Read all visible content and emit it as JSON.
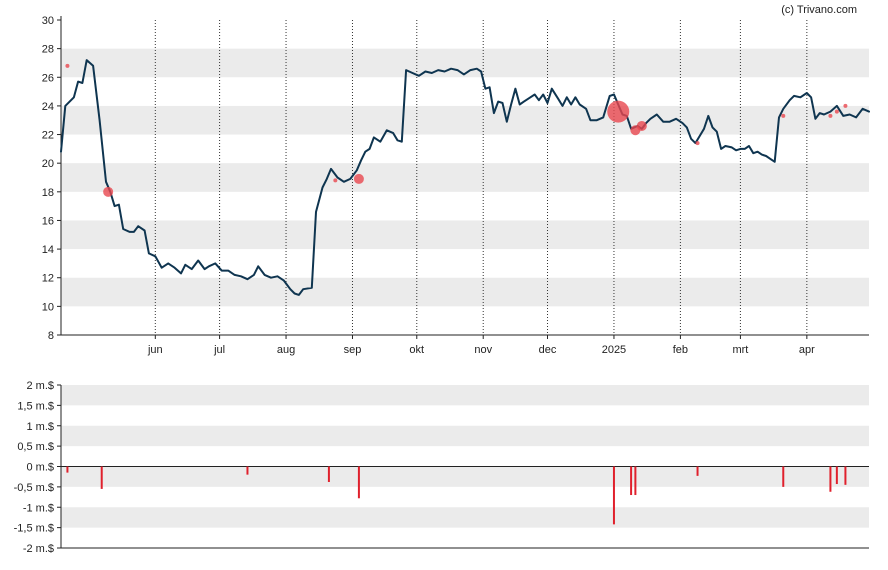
{
  "credit": "(c) Trivano.com",
  "colors": {
    "line": "#0f3550",
    "bubble": "#e8474f",
    "bar": "#e0202c",
    "band": "#ebebeb",
    "axis": "#222222",
    "grid_dotted": "#333333"
  },
  "chart_data": [
    {
      "type": "line",
      "title": "",
      "grid": true,
      "ylim": [
        8,
        30
      ],
      "yticks": [
        "8",
        "10",
        "12",
        "14",
        "16",
        "18",
        "20",
        "22",
        "24",
        "26",
        "28",
        "30"
      ],
      "ytick_values": [
        8,
        10,
        12,
        14,
        16,
        18,
        20,
        22,
        24,
        26,
        28,
        30
      ],
      "xticks": [
        "jun",
        "jul",
        "aug",
        "sep",
        "okt",
        "nov",
        "dec",
        "2025",
        "feb",
        "mrt",
        "apr"
      ],
      "xtick_dates": [
        "2024-06-01",
        "2024-07-01",
        "2024-08-01",
        "2024-09-01",
        "2024-10-01",
        "2024-11-01",
        "2024-12-01",
        "2025-01-01",
        "2025-02-01",
        "2025-03-01",
        "2025-04-01"
      ],
      "xlim": [
        "2024-04-18",
        "2025-04-30"
      ],
      "series": [
        {
          "values": [
            [
              "2024-04-18",
              20.8
            ],
            [
              "2024-04-20",
              24.0
            ],
            [
              "2024-04-24",
              24.6
            ],
            [
              "2024-04-26",
              25.7
            ],
            [
              "2024-04-28",
              25.6
            ],
            [
              "2024-04-30",
              27.2
            ],
            [
              "2024-05-03",
              26.8
            ],
            [
              "2024-05-06",
              23.0
            ],
            [
              "2024-05-09",
              18.7
            ],
            [
              "2024-05-11",
              18.0
            ],
            [
              "2024-05-13",
              17.0
            ],
            [
              "2024-05-15",
              17.1
            ],
            [
              "2024-05-17",
              15.4
            ],
            [
              "2024-05-20",
              15.2
            ],
            [
              "2024-05-22",
              15.2
            ],
            [
              "2024-05-24",
              15.6
            ],
            [
              "2024-05-27",
              15.3
            ],
            [
              "2024-05-29",
              13.7
            ],
            [
              "2024-06-01",
              13.5
            ],
            [
              "2024-06-04",
              12.7
            ],
            [
              "2024-06-07",
              13.0
            ],
            [
              "2024-06-10",
              12.7
            ],
            [
              "2024-06-13",
              12.3
            ],
            [
              "2024-06-15",
              12.9
            ],
            [
              "2024-06-18",
              12.6
            ],
            [
              "2024-06-21",
              13.2
            ],
            [
              "2024-06-24",
              12.6
            ],
            [
              "2024-06-26",
              12.8
            ],
            [
              "2024-06-29",
              13.0
            ],
            [
              "2024-07-02",
              12.5
            ],
            [
              "2024-07-05",
              12.5
            ],
            [
              "2024-07-08",
              12.2
            ],
            [
              "2024-07-11",
              12.1
            ],
            [
              "2024-07-14",
              11.9
            ],
            [
              "2024-07-17",
              12.2
            ],
            [
              "2024-07-19",
              12.8
            ],
            [
              "2024-07-22",
              12.2
            ],
            [
              "2024-07-25",
              12.0
            ],
            [
              "2024-07-28",
              12.1
            ],
            [
              "2024-07-31",
              11.8
            ],
            [
              "2024-08-03",
              11.2
            ],
            [
              "2024-08-05",
              10.9
            ],
            [
              "2024-08-07",
              10.8
            ],
            [
              "2024-08-09",
              11.2
            ],
            [
              "2024-08-13",
              11.3
            ],
            [
              "2024-08-15",
              16.6
            ],
            [
              "2024-08-18",
              18.3
            ],
            [
              "2024-08-20",
              18.9
            ],
            [
              "2024-08-22",
              19.6
            ],
            [
              "2024-08-25",
              19.0
            ],
            [
              "2024-08-28",
              18.7
            ],
            [
              "2024-08-31",
              18.9
            ],
            [
              "2024-09-03",
              19.5
            ],
            [
              "2024-09-05",
              20.2
            ],
            [
              "2024-09-07",
              20.8
            ],
            [
              "2024-09-09",
              21.0
            ],
            [
              "2024-09-11",
              21.8
            ],
            [
              "2024-09-14",
              21.5
            ],
            [
              "2024-09-17",
              22.3
            ],
            [
              "2024-09-20",
              22.1
            ],
            [
              "2024-09-22",
              21.6
            ],
            [
              "2024-09-24",
              21.5
            ],
            [
              "2024-09-26",
              26.5
            ],
            [
              "2024-09-29",
              26.3
            ],
            [
              "2024-10-02",
              26.1
            ],
            [
              "2024-10-05",
              26.4
            ],
            [
              "2024-10-08",
              26.3
            ],
            [
              "2024-10-11",
              26.5
            ],
            [
              "2024-10-14",
              26.4
            ],
            [
              "2024-10-17",
              26.6
            ],
            [
              "2024-10-20",
              26.5
            ],
            [
              "2024-10-23",
              26.2
            ],
            [
              "2024-10-26",
              26.5
            ],
            [
              "2024-10-29",
              26.6
            ],
            [
              "2024-10-31",
              26.4
            ],
            [
              "2024-11-02",
              25.2
            ],
            [
              "2024-11-04",
              25.3
            ],
            [
              "2024-11-06",
              23.5
            ],
            [
              "2024-11-08",
              24.3
            ],
            [
              "2024-11-10",
              24.2
            ],
            [
              "2024-11-12",
              22.9
            ],
            [
              "2024-11-14",
              24.1
            ],
            [
              "2024-11-16",
              25.2
            ],
            [
              "2024-11-18",
              24.1
            ],
            [
              "2024-11-20",
              24.3
            ],
            [
              "2024-11-23",
              24.6
            ],
            [
              "2024-11-25",
              24.8
            ],
            [
              "2024-11-27",
              24.4
            ],
            [
              "2024-11-29",
              24.8
            ],
            [
              "2024-12-01",
              24.2
            ],
            [
              "2024-12-03",
              25.2
            ],
            [
              "2024-12-06",
              24.5
            ],
            [
              "2024-12-08",
              24.0
            ],
            [
              "2024-12-10",
              24.6
            ],
            [
              "2024-12-12",
              24.1
            ],
            [
              "2024-12-14",
              24.6
            ],
            [
              "2024-12-16",
              24.1
            ],
            [
              "2024-12-19",
              23.8
            ],
            [
              "2024-12-21",
              23.0
            ],
            [
              "2024-12-24",
              23.0
            ],
            [
              "2024-12-27",
              23.2
            ],
            [
              "2024-12-30",
              24.7
            ],
            [
              "2025-01-01",
              24.8
            ],
            [
              "2025-01-03",
              24.1
            ],
            [
              "2025-01-05",
              23.4
            ],
            [
              "2025-01-07",
              23.3
            ],
            [
              "2025-01-09",
              22.4
            ],
            [
              "2025-01-12",
              22.6
            ],
            [
              "2025-01-14",
              22.4
            ],
            [
              "2025-01-16",
              22.8
            ],
            [
              "2025-01-18",
              23.1
            ],
            [
              "2025-01-21",
              23.4
            ],
            [
              "2025-01-24",
              22.9
            ],
            [
              "2025-01-27",
              22.9
            ],
            [
              "2025-01-30",
              23.1
            ],
            [
              "2025-02-02",
              22.8
            ],
            [
              "2025-02-04",
              22.5
            ],
            [
              "2025-02-06",
              21.7
            ],
            [
              "2025-02-08",
              21.4
            ],
            [
              "2025-02-10",
              21.9
            ],
            [
              "2025-02-12",
              22.4
            ],
            [
              "2025-02-14",
              23.3
            ],
            [
              "2025-02-16",
              22.5
            ],
            [
              "2025-02-18",
              22.2
            ],
            [
              "2025-02-20",
              21.0
            ],
            [
              "2025-02-22",
              21.2
            ],
            [
              "2025-02-25",
              21.1
            ],
            [
              "2025-02-27",
              20.9
            ],
            [
              "2025-03-01",
              21.0
            ],
            [
              "2025-03-03",
              21.0
            ],
            [
              "2025-03-05",
              21.2
            ],
            [
              "2025-03-07",
              20.7
            ],
            [
              "2025-03-09",
              20.8
            ],
            [
              "2025-03-11",
              20.6
            ],
            [
              "2025-03-13",
              20.5
            ],
            [
              "2025-03-15",
              20.3
            ],
            [
              "2025-03-17",
              20.1
            ],
            [
              "2025-03-19",
              23.2
            ],
            [
              "2025-03-21",
              23.8
            ],
            [
              "2025-03-24",
              24.4
            ],
            [
              "2025-03-26",
              24.7
            ],
            [
              "2025-03-29",
              24.6
            ],
            [
              "2025-04-01",
              24.9
            ],
            [
              "2025-04-03",
              24.6
            ],
            [
              "2025-04-05",
              23.1
            ],
            [
              "2025-04-07",
              23.5
            ],
            [
              "2025-04-09",
              23.4
            ],
            [
              "2025-04-12",
              23.6
            ],
            [
              "2025-04-15",
              24.0
            ],
            [
              "2025-04-18",
              23.3
            ],
            [
              "2025-04-21",
              23.4
            ],
            [
              "2025-04-24",
              23.2
            ],
            [
              "2025-04-27",
              23.8
            ],
            [
              "2025-04-30",
              23.6
            ]
          ]
        }
      ],
      "markers": [
        {
          "date": "2024-04-21",
          "value": 26.8,
          "size": 1
        },
        {
          "date": "2024-05-10",
          "value": 18.0,
          "size": 2
        },
        {
          "date": "2024-08-24",
          "value": 18.8,
          "size": 1
        },
        {
          "date": "2024-09-04",
          "value": 18.9,
          "size": 2
        },
        {
          "date": "2025-01-03",
          "value": 23.6,
          "size": 4
        },
        {
          "date": "2025-01-11",
          "value": 22.3,
          "size": 2
        },
        {
          "date": "2025-01-14",
          "value": 22.6,
          "size": 2
        },
        {
          "date": "2025-02-09",
          "value": 21.4,
          "size": 1
        },
        {
          "date": "2025-03-21",
          "value": 23.3,
          "size": 1
        },
        {
          "date": "2025-04-12",
          "value": 23.3,
          "size": 1
        },
        {
          "date": "2025-04-15",
          "value": 23.6,
          "size": 1
        },
        {
          "date": "2025-04-19",
          "value": 24.0,
          "size": 1
        }
      ]
    },
    {
      "type": "bar",
      "title": "",
      "grid": true,
      "ylim": [
        -2,
        2
      ],
      "yticks": [
        "-2 m.$",
        "-1,5 m.$",
        "-1 m.$",
        "-0,5 m.$",
        "0 m.$",
        "0,5 m.$",
        "1 m.$",
        "1,5 m.$",
        "2 m.$"
      ],
      "ytick_values": [
        -2,
        -1.5,
        -1,
        -0.5,
        0,
        0.5,
        1,
        1.5,
        2
      ],
      "unit": "m.$",
      "series": [
        {
          "values": [
            [
              "2024-04-21",
              -0.15
            ],
            [
              "2024-05-07",
              -0.55
            ],
            [
              "2024-07-14",
              -0.2
            ],
            [
              "2024-08-21",
              -0.38
            ],
            [
              "2024-09-04",
              -0.78
            ],
            [
              "2025-01-01",
              -1.42
            ],
            [
              "2025-01-09",
              -0.7
            ],
            [
              "2025-01-11",
              -0.7
            ],
            [
              "2025-02-09",
              -0.23
            ],
            [
              "2025-03-21",
              -0.5
            ],
            [
              "2025-04-12",
              -0.62
            ],
            [
              "2025-04-15",
              -0.43
            ],
            [
              "2025-04-19",
              -0.45
            ]
          ]
        }
      ]
    }
  ]
}
